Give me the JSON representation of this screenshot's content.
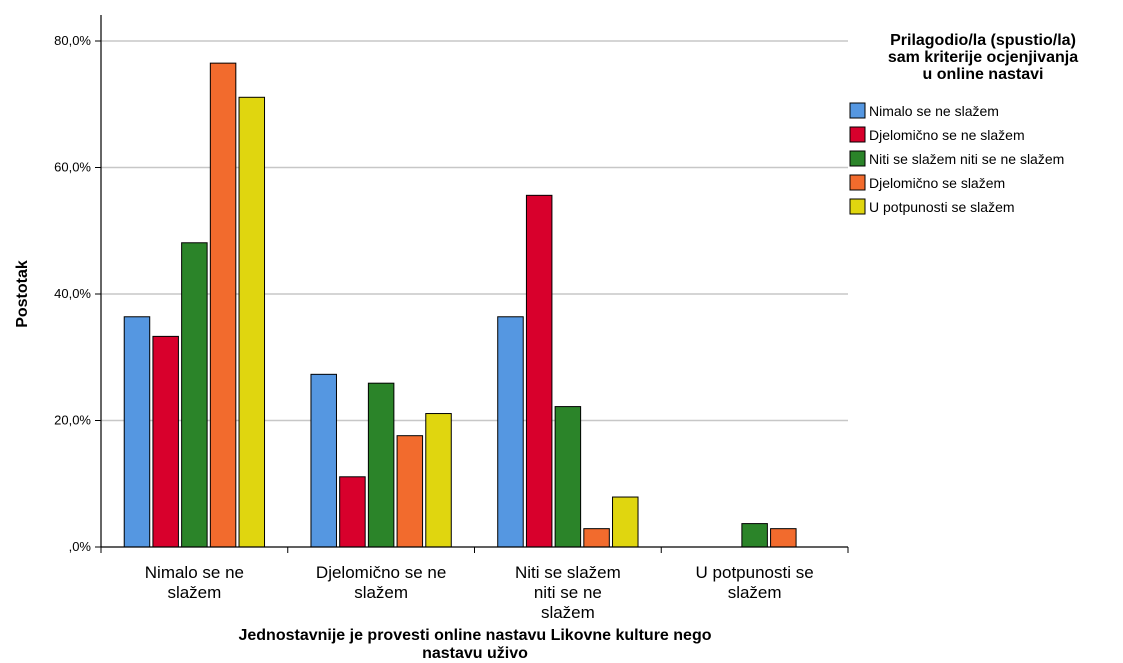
{
  "chart_data": {
    "type": "bar",
    "ylabel": "Postotak",
    "xlabel": "Jednostavnije je provesti online nastavu Likovne kulture nego nastavu uživo",
    "categories": [
      "Nimalo se ne slažem",
      "Djelomično se ne slažem",
      "Niti se slažem niti se ne slažem",
      "U potpunosti se slažem"
    ],
    "ylim": [
      0,
      80
    ],
    "yticks": [
      0,
      20,
      40,
      60,
      80
    ],
    "ytick_labels": [
      ",0%",
      "20,0%",
      "40,0%",
      "60,0%",
      "80,0%"
    ],
    "grid": true,
    "legend_title": "Prilagodio/la (spustio/la) sam kriterije ocjenjivanja u online nastavi",
    "legend_position": "top-right",
    "series": [
      {
        "name": "Nimalo se ne slažem",
        "color": "#5597e1",
        "values": [
          36.4,
          27.3,
          36.4,
          0.0
        ]
      },
      {
        "name": "Djelomično se ne slažem",
        "color": "#d8002c",
        "values": [
          33.3,
          11.1,
          55.6,
          0.0
        ]
      },
      {
        "name": "Niti se slažem niti se ne slažem",
        "color": "#2b8429",
        "values": [
          48.1,
          25.9,
          22.2,
          3.7
        ]
      },
      {
        "name": "Djelomično se slažem",
        "color": "#f26b2d",
        "values": [
          76.5,
          17.6,
          2.9,
          2.9
        ]
      },
      {
        "name": "U potpunosti se slažem",
        "color": "#e0d60f",
        "values": [
          71.1,
          21.1,
          7.9,
          0.0
        ]
      }
    ]
  }
}
